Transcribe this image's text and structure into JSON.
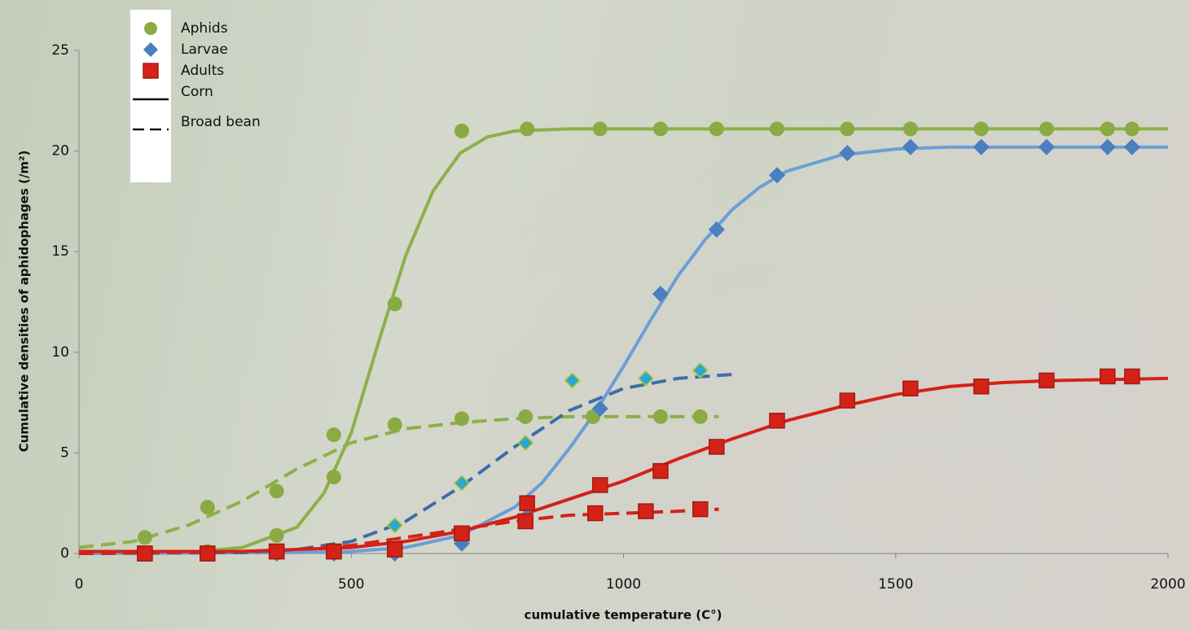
{
  "chart_data": {
    "type": "scatter",
    "x_label": "cumulative temperature (C°)",
    "y_label": "Cumulative densities of aphidophages (/m²)",
    "xlim": [
      0,
      2000
    ],
    "xticks": [
      0,
      500,
      1000,
      1500,
      2000
    ],
    "ylim": [
      0,
      25
    ],
    "yticks": [
      0,
      5,
      10,
      15,
      20,
      25
    ],
    "line_styles": [
      {
        "name": "Corn",
        "dash": "solid"
      },
      {
        "name": "Broad bean",
        "dash": "dashed"
      }
    ],
    "groups": [
      {
        "name": "Aphids",
        "marker": "circle",
        "color": "#8aab44",
        "line_color": "#8db04a",
        "points": [
          {
            "fill": "#8aab44",
            "x": [
              121,
              236,
              363,
              468,
              580,
              703,
              823,
              957,
              1068,
              1171,
              1282,
              1411,
              1527,
              1657,
              1777,
              1889,
              1934
            ],
            "values": [
              0,
              0.1,
              0.9,
              3.8,
              12.4,
              21.0,
              21.1,
              21.1,
              21.1,
              21.1,
              21.1,
              21.1,
              21.1,
              21.1,
              21.1,
              21.1,
              21.1
            ]
          },
          {
            "fill": "#8aab44",
            "x": [
              121,
              236,
              363,
              468,
              580,
              703,
              820,
              944,
              1068,
              1141
            ],
            "values": [
              0.8,
              2.3,
              3.1,
              5.9,
              6.4,
              6.7,
              6.8,
              6.8,
              6.8,
              6.8
            ]
          }
        ],
        "curves": [
          {
            "x": [
              0,
              100,
              200,
              300,
              400,
              450,
              500,
              550,
              600,
              650,
              700,
              750,
              800,
              900,
              1000,
              1200,
              1400,
              1600,
              1800,
              2000
            ],
            "values": [
              0,
              0.02,
              0.05,
              0.3,
              1.3,
              3,
              6,
              10.5,
              14.8,
              18,
              19.9,
              20.7,
              21,
              21.1,
              21.1,
              21.1,
              21.1,
              21.1,
              21.1,
              21.1
            ]
          },
          {
            "x": [
              0,
              100,
              200,
              300,
              400,
              500,
              600,
              700,
              800,
              900,
              1000,
              1100,
              1175
            ],
            "values": [
              0.3,
              0.6,
              1.4,
              2.6,
              4.2,
              5.5,
              6.2,
              6.5,
              6.7,
              6.8,
              6.8,
              6.8,
              6.8
            ]
          }
        ]
      },
      {
        "name": "Larvae",
        "marker": "diamond",
        "color": "#4a7fc0",
        "line_color": "#6a9fd8",
        "points": [
          {
            "fill": "#4a7fc0",
            "x": [
              363,
              468,
              580,
              703,
              823,
              957,
              1068,
              1171,
              1282,
              1411,
              1527,
              1657,
              1777,
              1889,
              1934
            ],
            "values": [
              0,
              0,
              0,
              0.5,
              2.3,
              7.2,
              12.9,
              16.1,
              18.8,
              19.9,
              20.2,
              20.2,
              20.2,
              20.2,
              20.2
            ]
          },
          {
            "fill": "#2aa8d0",
            "x": [
              580,
              703,
              820,
              906,
              1041,
              1141
            ],
            "values": [
              1.4,
              3.5,
              5.5,
              8.6,
              8.7,
              9.1
            ]
          }
        ],
        "curves": [
          {
            "x": [
              0,
              400,
              500,
              600,
              700,
              800,
              850,
              900,
              950,
              1000,
              1050,
              1100,
              1150,
              1200,
              1250,
              1300,
              1400,
              1500,
              1600,
              2000
            ],
            "values": [
              0,
              0.05,
              0.1,
              0.3,
              0.9,
              2.3,
              3.5,
              5.2,
              7.1,
              9.3,
              11.6,
              13.8,
              15.6,
              17.1,
              18.2,
              19,
              19.8,
              20.1,
              20.2,
              20.2
            ]
          },
          {
            "x": [
              0,
              300,
              400,
              500,
              600,
              700,
              800,
              900,
              1000,
              1100,
              1200
            ],
            "values": [
              0,
              0.05,
              0.2,
              0.6,
              1.6,
              3.3,
              5.3,
              7.1,
              8.2,
              8.7,
              8.9
            ]
          }
        ]
      },
      {
        "name": "Adults",
        "marker": "square",
        "color": "#d42218",
        "line_color": "#d42218",
        "points": [
          {
            "fill": "#d42218",
            "x": [
              121,
              236,
              363,
              468,
              580,
              703,
              823,
              957,
              1068,
              1171,
              1282,
              1411,
              1527,
              1657,
              1777,
              1889,
              1934
            ],
            "values": [
              0,
              0,
              0.1,
              0.1,
              0.2,
              1.0,
              2.5,
              3.4,
              4.1,
              5.3,
              6.6,
              7.6,
              8.2,
              8.3,
              8.6,
              8.8,
              8.8
            ]
          },
          {
            "fill": "#d42218",
            "x": [
              121,
              236,
              363,
              468,
              580,
              703,
              820,
              948,
              1041,
              1141
            ],
            "values": [
              0,
              0,
              0.1,
              0.1,
              0.2,
              1.0,
              1.6,
              2.0,
              2.1,
              2.2
            ]
          }
        ],
        "curves": [
          {
            "x": [
              0,
              300,
              500,
              600,
              700,
              800,
              900,
              1000,
              1100,
              1200,
              1300,
              1400,
              1500,
              1600,
              1700,
              1800,
              2000
            ],
            "values": [
              0.1,
              0.1,
              0.3,
              0.6,
              1.1,
              1.8,
              2.7,
              3.6,
              4.7,
              5.7,
              6.6,
              7.3,
              7.9,
              8.3,
              8.5,
              8.6,
              8.7
            ]
          },
          {
            "x": [
              0,
              300,
              400,
              500,
              600,
              700,
              800,
              900,
              1000,
              1100,
              1175
            ],
            "values": [
              0,
              0.1,
              0.2,
              0.4,
              0.8,
              1.2,
              1.6,
              1.9,
              2.0,
              2.1,
              2.2
            ]
          }
        ]
      }
    ]
  }
}
